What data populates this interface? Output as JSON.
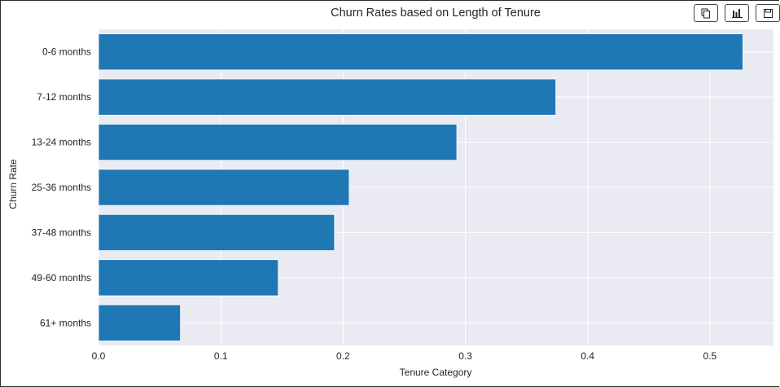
{
  "toolbar": {
    "buttons": [
      {
        "icon": "copy-icon"
      },
      {
        "icon": "bar-chart-icon"
      },
      {
        "icon": "save-icon"
      }
    ]
  },
  "chart_data": {
    "type": "bar",
    "orientation": "horizontal",
    "title": "Churn Rates based on Length of Tenure",
    "xlabel": "Tenure Category",
    "ylabel": "Churn Rate",
    "categories": [
      "0-6 months",
      "7-12 months",
      "13-24 months",
      "25-36 months",
      "37-48 months",
      "49-60 months",
      "61+ months"
    ],
    "values": [
      0.527,
      0.374,
      0.293,
      0.205,
      0.193,
      0.147,
      0.067
    ],
    "xlim": [
      0,
      0.552
    ],
    "xticks": [
      "0.0",
      "0.1",
      "0.2",
      "0.3",
      "0.4",
      "0.5"
    ],
    "grid": true,
    "bar_color": "#1f77b4",
    "plot_background": "#eaeaf2"
  }
}
